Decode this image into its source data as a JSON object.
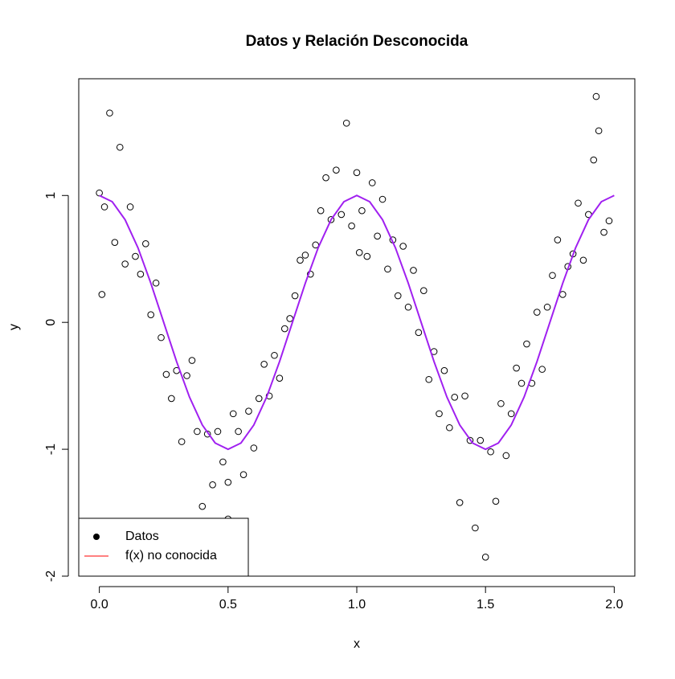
{
  "chart_data": {
    "type": "scatter",
    "title": "Datos y Relación Desconocida",
    "x_label": "x",
    "y_label": "y",
    "xlim": [
      -0.08,
      2.08
    ],
    "ylim": [
      -2.0,
      1.92
    ],
    "xticks": [
      {
        "value": 0,
        "label": "0.0"
      },
      {
        "value": 0.5,
        "label": "0.5"
      },
      {
        "value": 1,
        "label": "1.0"
      },
      {
        "value": 1.5,
        "label": "1.5"
      },
      {
        "value": 2,
        "label": "2.0"
      }
    ],
    "yticks": [
      -2,
      -1,
      0,
      1
    ],
    "legend": "bottomleft",
    "series": [
      {
        "name": "Datos",
        "type": "scatter",
        "color": "#000000",
        "x": [
          0.0,
          0.02,
          0.04,
          0.06,
          0.08,
          0.1,
          0.12,
          0.14,
          0.16,
          0.18,
          0.2,
          0.22,
          0.24,
          0.26,
          0.28,
          0.3,
          0.32,
          0.34,
          0.36,
          0.38,
          0.4,
          0.42,
          0.44,
          0.46,
          0.48,
          0.5,
          0.52,
          0.54,
          0.56,
          0.58,
          0.6,
          0.62,
          0.64,
          0.66,
          0.68,
          0.7,
          0.72,
          0.74,
          0.76,
          0.78,
          0.8,
          0.82,
          0.84,
          0.86,
          0.88,
          0.9,
          0.92,
          0.94,
          0.96,
          0.98,
          1.0,
          1.02,
          1.04,
          1.06,
          1.08,
          1.1,
          1.12,
          1.14,
          1.16,
          1.18,
          1.2,
          1.22,
          1.24,
          1.26,
          1.28,
          1.3,
          1.32,
          1.34,
          1.36,
          1.38,
          1.4,
          1.42,
          1.44,
          1.46,
          1.48,
          1.5,
          1.52,
          1.54,
          1.56,
          1.58,
          1.6,
          1.62,
          1.64,
          1.66,
          1.68,
          1.7,
          1.72,
          1.74,
          1.76,
          1.78,
          1.8,
          1.82,
          1.84,
          1.86,
          1.88,
          1.9,
          1.92,
          1.94,
          1.96,
          1.98,
          0.01,
          1.93,
          0.5,
          1.01
        ],
        "values": [
          1.02,
          0.91,
          1.65,
          0.63,
          1.38,
          0.46,
          0.91,
          0.52,
          0.38,
          0.62,
          0.06,
          0.31,
          -0.12,
          -0.41,
          -0.6,
          -0.38,
          -0.94,
          -0.42,
          -0.3,
          -0.86,
          -1.45,
          -0.88,
          -1.28,
          -0.86,
          -1.1,
          -1.55,
          -0.72,
          -0.86,
          -1.2,
          -0.7,
          -0.99,
          -0.6,
          -0.33,
          -0.58,
          -0.26,
          -0.44,
          -0.05,
          0.03,
          0.21,
          0.49,
          0.53,
          0.38,
          0.61,
          0.88,
          1.14,
          0.81,
          1.2,
          0.85,
          1.57,
          0.76,
          1.18,
          0.88,
          0.52,
          1.1,
          0.68,
          0.97,
          0.42,
          0.65,
          0.21,
          0.6,
          0.12,
          0.41,
          -0.08,
          0.25,
          -0.45,
          -0.23,
          -0.72,
          -0.38,
          -0.83,
          -0.59,
          -1.42,
          -0.58,
          -0.93,
          -1.62,
          -0.93,
          -1.85,
          -1.02,
          -1.41,
          -0.64,
          -1.05,
          -0.72,
          -0.36,
          -0.48,
          -0.17,
          -0.48,
          0.08,
          -0.37,
          0.12,
          0.37,
          0.65,
          0.22,
          0.44,
          0.54,
          0.94,
          0.49,
          0.85,
          1.28,
          1.51,
          0.71,
          0.8,
          0.22,
          1.78,
          -1.26,
          0.55
        ]
      },
      {
        "name": "f(x) no conocida",
        "type": "line",
        "color": "#a020f0",
        "legend_color": "#ff0000",
        "x": [
          0,
          0.05,
          0.1,
          0.15,
          0.2,
          0.25,
          0.3,
          0.35,
          0.4,
          0.45,
          0.5,
          0.55,
          0.6,
          0.65,
          0.7,
          0.75,
          0.8,
          0.85,
          0.9,
          0.95,
          1,
          1.05,
          1.1,
          1.15,
          1.2,
          1.25,
          1.3,
          1.35,
          1.4,
          1.45,
          1.5,
          1.55,
          1.6,
          1.65,
          1.7,
          1.75,
          1.8,
          1.85,
          1.9,
          1.95,
          2
        ],
        "values": [
          1,
          0.951,
          0.809,
          0.588,
          0.309,
          0,
          -0.309,
          -0.588,
          -0.809,
          -0.951,
          -1,
          -0.951,
          -0.809,
          -0.588,
          -0.309,
          0,
          0.309,
          0.588,
          0.809,
          0.951,
          1,
          0.951,
          0.809,
          0.588,
          0.309,
          0,
          -0.309,
          -0.588,
          -0.809,
          -0.951,
          -1,
          -0.951,
          -0.809,
          -0.588,
          -0.309,
          0,
          0.309,
          0.588,
          0.809,
          0.951,
          1
        ]
      }
    ]
  }
}
